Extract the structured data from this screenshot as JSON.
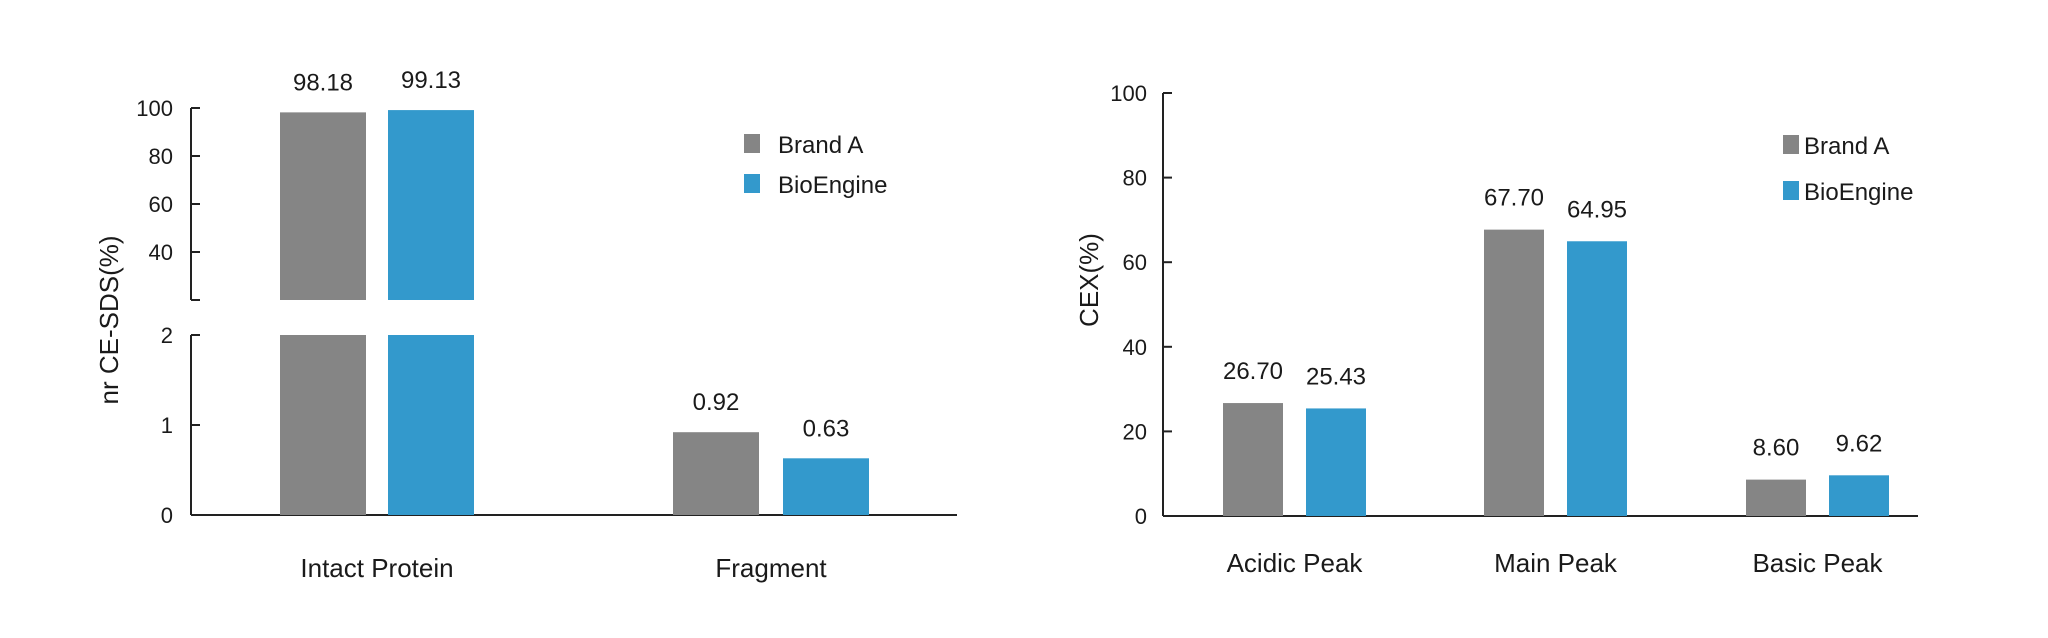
{
  "chart_data": [
    {
      "type": "bar",
      "ylabel": "nr CE-SDS(%)",
      "xlabel": "",
      "categories": [
        "Intact Protein",
        "Fragment"
      ],
      "series": [
        {
          "name": "Brand A",
          "color": "#858585",
          "values": [
            98.18,
            0.92
          ]
        },
        {
          "name": "BioEngine",
          "color": "#3399cc",
          "values": [
            99.13,
            0.63
          ]
        }
      ],
      "value_labels": [
        [
          "98.18",
          "0.92"
        ],
        [
          "99.13",
          "0.63"
        ]
      ],
      "broken_axis": true,
      "lower_range": [
        0,
        2
      ],
      "upper_range": [
        20,
        100
      ],
      "yticks_lower": [
        0,
        1,
        2
      ],
      "yticks_upper": [
        40,
        60,
        80,
        100
      ],
      "legend_position": "top-right",
      "grid": false
    },
    {
      "type": "bar",
      "ylabel": "CEX(%)",
      "xlabel": "",
      "categories": [
        "Acidic Peak",
        "Main Peak",
        "Basic Peak"
      ],
      "series": [
        {
          "name": "Brand A",
          "color": "#858585",
          "values": [
            26.7,
            67.7,
            8.6
          ]
        },
        {
          "name": "BioEngine",
          "color": "#3399cc",
          "values": [
            25.43,
            64.95,
            9.62
          ]
        }
      ],
      "value_labels": [
        [
          "26.70",
          "67.70",
          "8.60"
        ],
        [
          "25.43",
          "64.95",
          "9.62"
        ]
      ],
      "ylim": [
        0,
        100
      ],
      "yticks": [
        0,
        20,
        40,
        60,
        80,
        100
      ],
      "legend_position": "top-right",
      "grid": false
    }
  ]
}
